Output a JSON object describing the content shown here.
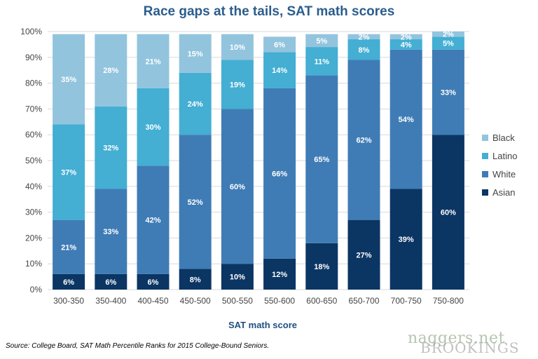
{
  "title": "Race gaps at the tails, SAT math scores",
  "source": "Source: College Board, SAT Math Percentile Ranks for 2015 College-Bound Seniors.",
  "watermark": "naggers.net",
  "logo_text": "BROOKINGS",
  "colors": {
    "Asian": "#0b3563",
    "White": "#3f7cb5",
    "Latino": "#44aed3",
    "Black": "#92c4de",
    "axis_text": "#444444",
    "grid": "#d9d9d9"
  },
  "chart_data": {
    "type": "bar",
    "stacked": true,
    "title": "Race gaps at the tails, SAT math scores",
    "xlabel": "SAT math score",
    "ylabel": "",
    "ylim": [
      0,
      100
    ],
    "yticks": [
      "0%",
      "10%",
      "20%",
      "30%",
      "40%",
      "50%",
      "60%",
      "70%",
      "80%",
      "90%",
      "100%"
    ],
    "legend_position": "right",
    "categories": [
      "300-350",
      "350-400",
      "400-450",
      "450-500",
      "500-550",
      "550-600",
      "600-650",
      "650-700",
      "700-750",
      "750-800"
    ],
    "series": [
      {
        "name": "Asian",
        "values": [
          6,
          6,
          6,
          8,
          10,
          12,
          18,
          27,
          39,
          60
        ]
      },
      {
        "name": "White",
        "values": [
          21,
          33,
          42,
          52,
          60,
          66,
          65,
          62,
          54,
          33
        ]
      },
      {
        "name": "Latino",
        "values": [
          37,
          32,
          30,
          24,
          19,
          14,
          11,
          8,
          4,
          5
        ]
      },
      {
        "name": "Black",
        "values": [
          35,
          28,
          21,
          15,
          10,
          6,
          5,
          2,
          2,
          2
        ]
      }
    ],
    "legend_order": [
      "Black",
      "Latino",
      "White",
      "Asian"
    ]
  }
}
